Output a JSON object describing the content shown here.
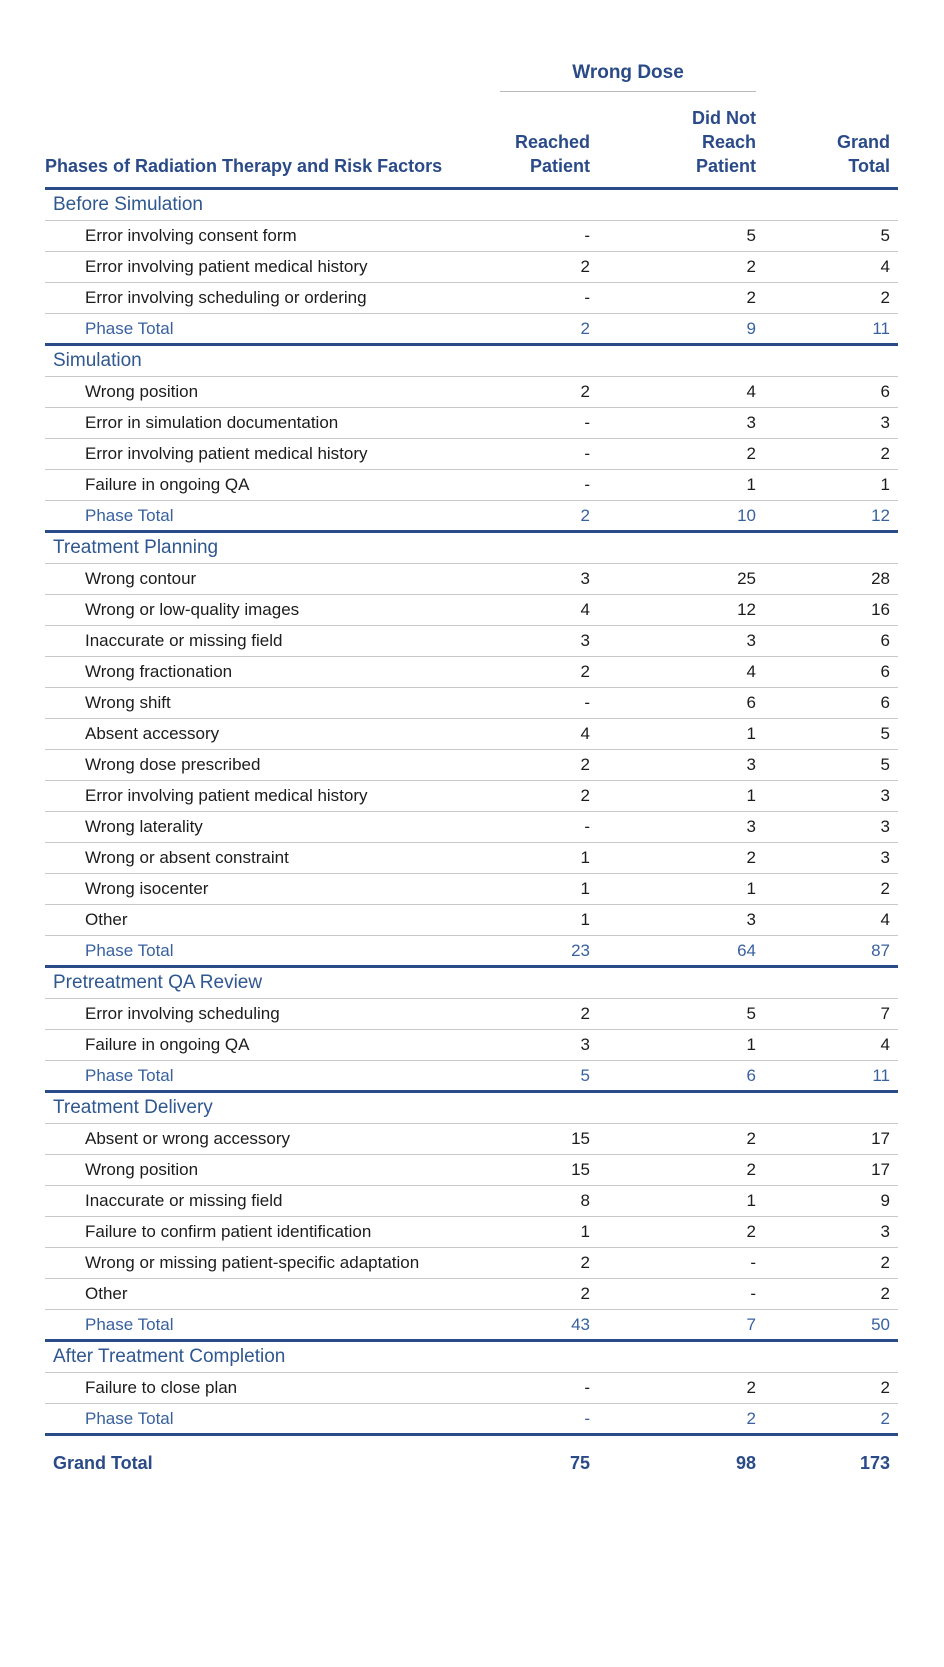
{
  "header": {
    "group_label": "Wrong Dose",
    "row_axis_label": "Phases of Radiation Therapy and Risk Factors",
    "columns": [
      "Reached\nPatient",
      "Did Not\nReach\nPatient",
      "Grand\nTotal"
    ]
  },
  "sections": [
    {
      "name": "Before Simulation",
      "rows": [
        {
          "label": "Error involving consent form",
          "values": [
            "-",
            "5",
            "5"
          ]
        },
        {
          "label": "Error involving patient medical history",
          "values": [
            "2",
            "2",
            "4"
          ]
        },
        {
          "label": "Error involving scheduling or ordering",
          "values": [
            "-",
            "2",
            "2"
          ]
        }
      ],
      "total": {
        "label": "Phase Total",
        "values": [
          "2",
          "9",
          "11"
        ]
      }
    },
    {
      "name": "Simulation",
      "rows": [
        {
          "label": "Wrong position",
          "values": [
            "2",
            "4",
            "6"
          ]
        },
        {
          "label": "Error in simulation documentation",
          "values": [
            "-",
            "3",
            "3"
          ]
        },
        {
          "label": "Error involving patient medical history",
          "values": [
            "-",
            "2",
            "2"
          ]
        },
        {
          "label": "Failure in ongoing QA",
          "values": [
            "-",
            "1",
            "1"
          ]
        }
      ],
      "total": {
        "label": "Phase Total",
        "values": [
          "2",
          "10",
          "12"
        ]
      }
    },
    {
      "name": "Treatment Planning",
      "rows": [
        {
          "label": "Wrong contour",
          "values": [
            "3",
            "25",
            "28"
          ]
        },
        {
          "label": "Wrong or low-quality images",
          "values": [
            "4",
            "12",
            "16"
          ]
        },
        {
          "label": "Inaccurate or missing field",
          "values": [
            "3",
            "3",
            "6"
          ]
        },
        {
          "label": "Wrong fractionation",
          "values": [
            "2",
            "4",
            "6"
          ]
        },
        {
          "label": "Wrong shift",
          "values": [
            "-",
            "6",
            "6"
          ]
        },
        {
          "label": "Absent accessory",
          "values": [
            "4",
            "1",
            "5"
          ]
        },
        {
          "label": "Wrong dose prescribed",
          "values": [
            "2",
            "3",
            "5"
          ]
        },
        {
          "label": "Error involving patient medical history",
          "values": [
            "2",
            "1",
            "3"
          ]
        },
        {
          "label": "Wrong laterality",
          "values": [
            "-",
            "3",
            "3"
          ]
        },
        {
          "label": "Wrong or absent constraint",
          "values": [
            "1",
            "2",
            "3"
          ]
        },
        {
          "label": "Wrong isocenter",
          "values": [
            "1",
            "1",
            "2"
          ]
        },
        {
          "label": "Other",
          "values": [
            "1",
            "3",
            "4"
          ]
        }
      ],
      "total": {
        "label": "Phase Total",
        "values": [
          "23",
          "64",
          "87"
        ]
      }
    },
    {
      "name": "Pretreatment QA Review",
      "rows": [
        {
          "label": "Error involving scheduling",
          "values": [
            "2",
            "5",
            "7"
          ]
        },
        {
          "label": "Failure in ongoing QA",
          "values": [
            "3",
            "1",
            "4"
          ]
        }
      ],
      "total": {
        "label": "Phase Total",
        "values": [
          "5",
          "6",
          "11"
        ]
      }
    },
    {
      "name": "Treatment Delivery",
      "rows": [
        {
          "label": "Absent or wrong accessory",
          "values": [
            "15",
            "2",
            "17"
          ]
        },
        {
          "label": "Wrong position",
          "values": [
            "15",
            "2",
            "17"
          ]
        },
        {
          "label": "Inaccurate or missing field",
          "values": [
            "8",
            "1",
            "9"
          ]
        },
        {
          "label": "Failure to confirm patient identification",
          "values": [
            "1",
            "2",
            "3"
          ]
        },
        {
          "label": "Wrong or missing patient-specific adaptation",
          "values": [
            "2",
            "-",
            "2"
          ]
        },
        {
          "label": "Other",
          "values": [
            "2",
            "-",
            "2"
          ]
        }
      ],
      "total": {
        "label": "Phase Total",
        "values": [
          "43",
          "7",
          "50"
        ]
      }
    },
    {
      "name": "After Treatment Completion",
      "rows": [
        {
          "label": "Failure to close plan",
          "values": [
            "-",
            "2",
            "2"
          ]
        }
      ],
      "total": {
        "label": "Phase Total",
        "values": [
          "-",
          "2",
          "2"
        ]
      }
    }
  ],
  "grand_total": {
    "label": "Grand Total",
    "values": [
      "75",
      "98",
      "173"
    ]
  },
  "colors": {
    "navy": "#2a4a88",
    "section_blue": "#2f5790",
    "total_blue": "#38619f",
    "thin_rule": "#c9c9c9",
    "group_rule": "#b9b9b9",
    "body_text": "#1c1c1c",
    "page_background": "#ffffff"
  }
}
